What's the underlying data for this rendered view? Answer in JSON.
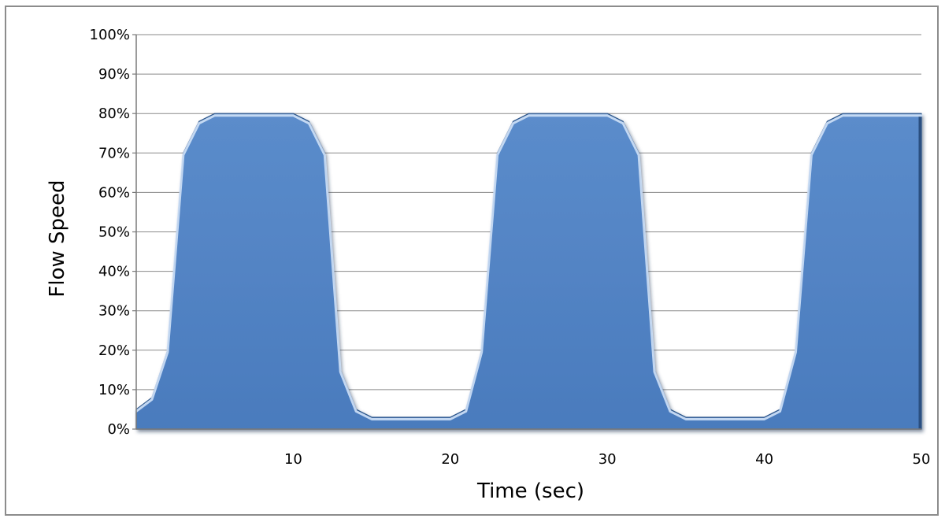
{
  "chart_data": {
    "type": "area",
    "title": "",
    "xlabel": "Time (sec)",
    "ylabel": "Flow Speed",
    "xlim": [
      0,
      50
    ],
    "ylim": [
      0,
      100
    ],
    "y_ticks": [
      "0%",
      "10%",
      "20%",
      "30%",
      "40%",
      "50%",
      "60%",
      "70%",
      "80%",
      "90%",
      "100%"
    ],
    "x_ticks": [
      "10",
      "20",
      "30",
      "40",
      "50"
    ],
    "grid": true,
    "legend": "none",
    "color": "#4f81bd",
    "series": [
      {
        "x": [
          0,
          1,
          2,
          3,
          4,
          5,
          6,
          7,
          8,
          9,
          10,
          11,
          12,
          13,
          14,
          15,
          16,
          17,
          18,
          19,
          20,
          21,
          22,
          23,
          24,
          25,
          26,
          27,
          28,
          29,
          30,
          31,
          32,
          33,
          34,
          35,
          36,
          37,
          38,
          39,
          40,
          41,
          42,
          43,
          44,
          45,
          46,
          47,
          48,
          49,
          50
        ],
        "values": [
          5,
          8,
          20,
          70,
          78,
          80,
          80,
          80,
          80,
          80,
          80,
          78,
          70,
          15,
          5,
          3,
          3,
          3,
          3,
          3,
          3,
          5,
          20,
          70,
          78,
          80,
          80,
          80,
          80,
          80,
          80,
          78,
          70,
          15,
          5,
          3,
          3,
          3,
          3,
          3,
          3,
          5,
          20,
          70,
          78,
          80,
          80,
          80,
          80,
          80,
          80
        ]
      }
    ]
  }
}
